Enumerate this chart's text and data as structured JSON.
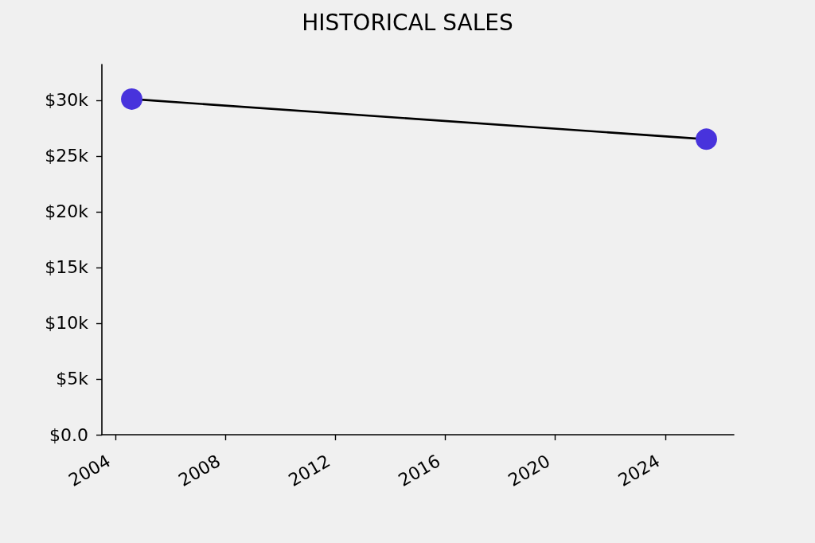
{
  "chart_data": {
    "type": "line",
    "title": "HISTORICAL SALES",
    "x": [
      "2004-08",
      "2025-07"
    ],
    "values": [
      30100,
      26500
    ],
    "color": "#000000",
    "colors": [
      "#4833dc",
      "#4833dc"
    ],
    "marker": "circle",
    "xlim": [
      "2003-07",
      "2026-07"
    ],
    "xticks": [
      "2004",
      "2008",
      "2012",
      "2016",
      "2020",
      "2024"
    ],
    "ylim": [
      0,
      33200
    ],
    "yticks": [
      {
        "value": 0,
        "label": "$0.0"
      },
      {
        "value": 5000,
        "label": "$5k"
      },
      {
        "value": 10000,
        "label": "$10k"
      },
      {
        "value": 15000,
        "label": "$15k"
      },
      {
        "value": 20000,
        "label": "$20k"
      },
      {
        "value": 25000,
        "label": "$25k"
      },
      {
        "value": 30000,
        "label": "$30k"
      }
    ]
  }
}
